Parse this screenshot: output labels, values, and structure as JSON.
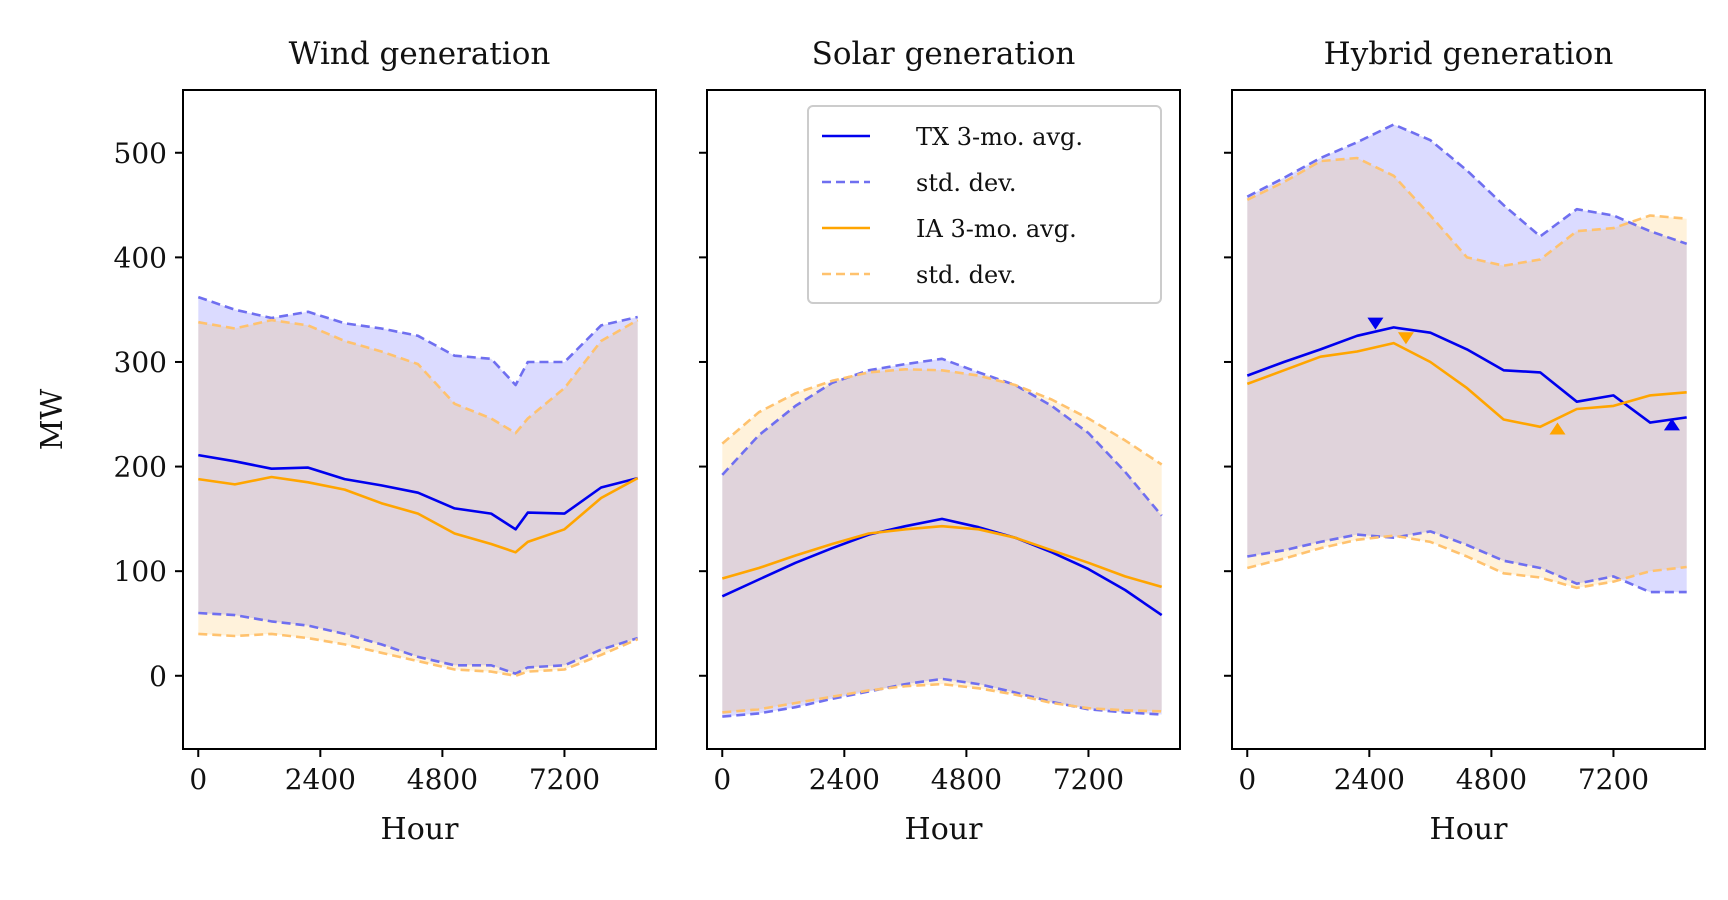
{
  "chart_data": [
    {
      "type": "line",
      "title": "Wind generation",
      "xlabel": "Hour",
      "ylabel": "MW",
      "xlim": [
        -300,
        9000
      ],
      "ylim": [
        -70,
        560
      ],
      "xticks": [
        0,
        2400,
        4800,
        7200
      ],
      "yticks": [
        0,
        100,
        200,
        300,
        400,
        500
      ],
      "x": [
        0,
        720,
        1440,
        2160,
        2880,
        3600,
        4320,
        5040,
        5760,
        6240,
        6480,
        7200,
        7920,
        8640
      ],
      "series": [
        {
          "name": "TX 3-mo. avg.",
          "color": "#0000ee",
          "dash": false,
          "values": [
            211,
            205,
            198,
            199,
            188,
            182,
            175,
            160,
            155,
            140,
            156,
            155,
            180,
            189
          ]
        },
        {
          "name": "std. dev.",
          "color": "#6f6ff0",
          "dash": true,
          "values": [
            362,
            350,
            342,
            348,
            337,
            332,
            325,
            306,
            303,
            278,
            300,
            300,
            335,
            343
          ]
        },
        {
          "name": null,
          "color": "#6f6ff0",
          "dash": true,
          "values": [
            60,
            58,
            52,
            48,
            40,
            30,
            18,
            10,
            10,
            2,
            8,
            10,
            25,
            36
          ]
        },
        {
          "name": "IA 3-mo. avg.",
          "color": "#ffa500",
          "dash": false,
          "values": [
            188,
            183,
            190,
            185,
            178,
            165,
            155,
            136,
            126,
            118,
            128,
            140,
            170,
            189
          ]
        },
        {
          "name": "std. dev.",
          "color": "#ffc26e",
          "dash": true,
          "values": [
            338,
            332,
            340,
            335,
            320,
            310,
            298,
            260,
            246,
            232,
            246,
            275,
            320,
            340
          ]
        },
        {
          "name": null,
          "color": "#ffc26e",
          "dash": true,
          "values": [
            40,
            38,
            40,
            36,
            30,
            22,
            14,
            6,
            4,
            0,
            4,
            6,
            20,
            35
          ]
        }
      ],
      "markers": []
    },
    {
      "type": "line",
      "title": "Solar generation",
      "xlabel": "Hour",
      "ylabel": "",
      "xlim": [
        -300,
        9000
      ],
      "ylim": [
        -70,
        560
      ],
      "xticks": [
        0,
        2400,
        4800,
        7200
      ],
      "yticks": [
        0,
        100,
        200,
        300,
        400,
        500
      ],
      "x": [
        0,
        720,
        1440,
        2160,
        2880,
        3600,
        4320,
        5040,
        5760,
        6480,
        7200,
        7920,
        8640
      ],
      "series": [
        {
          "name": "TX 3-mo. avg.",
          "color": "#0000ee",
          "dash": false,
          "values": [
            76,
            92,
            108,
            122,
            135,
            143,
            150,
            142,
            132,
            118,
            102,
            82,
            58
          ]
        },
        {
          "name": "std. dev.",
          "color": "#6f6ff0",
          "dash": true,
          "values": [
            192,
            230,
            258,
            280,
            292,
            298,
            303,
            290,
            278,
            258,
            232,
            195,
            153
          ]
        },
        {
          "name": null,
          "color": "#6f6ff0",
          "dash": true,
          "values": [
            -39,
            -36,
            -30,
            -22,
            -15,
            -8,
            -3,
            -8,
            -16,
            -25,
            -32,
            -35,
            -37
          ]
        },
        {
          "name": "IA 3-mo. avg.",
          "color": "#ffa500",
          "dash": false,
          "values": [
            93,
            103,
            115,
            126,
            136,
            140,
            143,
            140,
            132,
            120,
            108,
            95,
            85
          ]
        },
        {
          "name": "std. dev.",
          "color": "#ffc26e",
          "dash": true,
          "values": [
            222,
            252,
            270,
            282,
            290,
            293,
            292,
            287,
            278,
            264,
            246,
            225,
            202
          ]
        },
        {
          "name": null,
          "color": "#ffc26e",
          "dash": true,
          "values": [
            -35,
            -32,
            -26,
            -20,
            -14,
            -10,
            -8,
            -12,
            -18,
            -26,
            -31,
            -33,
            -34
          ]
        }
      ],
      "markers": []
    },
    {
      "type": "line",
      "title": "Hybrid generation",
      "xlabel": "Hour",
      "ylabel": "",
      "xlim": [
        -300,
        9000
      ],
      "ylim": [
        -70,
        560
      ],
      "xticks": [
        0,
        2400,
        4800,
        7200
      ],
      "yticks": [
        0,
        100,
        200,
        300,
        400,
        500
      ],
      "x": [
        0,
        720,
        1440,
        2160,
        2880,
        3600,
        4320,
        5040,
        5760,
        6480,
        7200,
        7920,
        8640
      ],
      "series": [
        {
          "name": "TX 3-mo. avg.",
          "color": "#0000ee",
          "dash": false,
          "values": [
            287,
            300,
            312,
            325,
            333,
            328,
            312,
            292,
            290,
            262,
            268,
            242,
            247
          ]
        },
        {
          "name": "std. dev.",
          "color": "#6f6ff0",
          "dash": true,
          "values": [
            458,
            476,
            495,
            510,
            527,
            512,
            483,
            450,
            420,
            446,
            440,
            425,
            413
          ]
        },
        {
          "name": null,
          "color": "#6f6ff0",
          "dash": true,
          "values": [
            114,
            120,
            128,
            135,
            132,
            138,
            125,
            110,
            103,
            88,
            95,
            80,
            80
          ]
        },
        {
          "name": "IA 3-mo. avg.",
          "color": "#ffa500",
          "dash": false,
          "values": [
            279,
            292,
            305,
            310,
            318,
            300,
            275,
            245,
            238,
            255,
            258,
            268,
            271
          ]
        },
        {
          "name": "std. dev.",
          "color": "#ffc26e",
          "dash": true,
          "values": [
            455,
            472,
            492,
            495,
            478,
            440,
            400,
            392,
            398,
            425,
            428,
            440,
            437
          ]
        },
        {
          "name": null,
          "color": "#ffc26e",
          "dash": true,
          "values": [
            103,
            112,
            122,
            130,
            134,
            128,
            114,
            98,
            94,
            84,
            90,
            100,
            104
          ]
        }
      ],
      "markers": [
        {
          "series": "TX 3-mo. avg.",
          "shape": "triangle-down",
          "x": 2520,
          "y": 337,
          "color": "#0000ee"
        },
        {
          "series": "TX 3-mo. avg.",
          "shape": "triangle-up",
          "x": 8350,
          "y": 240,
          "color": "#0000ee"
        },
        {
          "series": "IA 3-mo. avg.",
          "shape": "triangle-down",
          "x": 3120,
          "y": 323,
          "color": "#ffa500"
        },
        {
          "series": "IA 3-mo. avg.",
          "shape": "triangle-up",
          "x": 6100,
          "y": 236,
          "color": "#ffa500"
        }
      ]
    }
  ],
  "legend": {
    "panel": 1,
    "placement": "upper-right",
    "entries": [
      {
        "label": "TX 3-mo. avg.",
        "color": "#0000ee",
        "dash": false
      },
      {
        "label": "std. dev.",
        "color": "#6f6ff0",
        "dash": true
      },
      {
        "label": "IA 3-mo. avg.",
        "color": "#ffa500",
        "dash": false
      },
      {
        "label": "std. dev.",
        "color": "#ffc26e",
        "dash": true
      }
    ]
  }
}
